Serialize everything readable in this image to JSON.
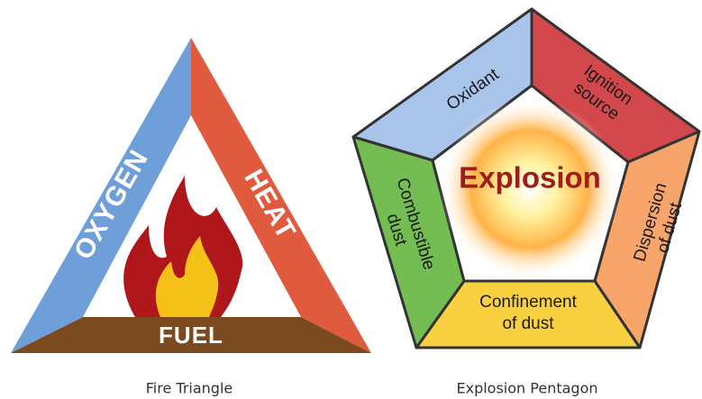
{
  "fire_triangle": {
    "sides": {
      "left": "OXYGEN",
      "right": "HEAT",
      "bottom": "FUEL"
    },
    "caption": "Fire Triangle"
  },
  "explosion_pentagon": {
    "center": "Explosion",
    "segments": [
      {
        "lines": [
          "Oxidant"
        ]
      },
      {
        "lines": [
          "Ignition",
          "source"
        ]
      },
      {
        "lines": [
          "Dispersion",
          "of dust"
        ]
      },
      {
        "lines": [
          "Confinement",
          "of dust"
        ]
      },
      {
        "lines": [
          "Combustible",
          "dust"
        ]
      }
    ],
    "caption": "Explosion Pentagon"
  }
}
